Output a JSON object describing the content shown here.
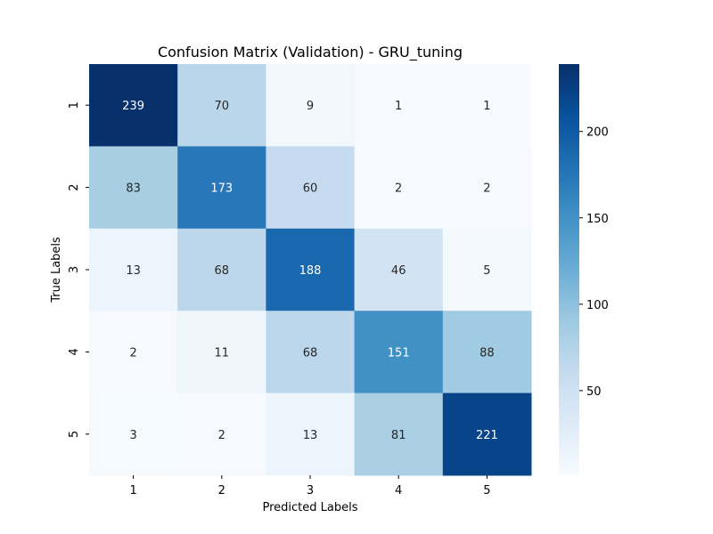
{
  "chart_data": {
    "type": "heatmap",
    "title": "Confusion Matrix (Validation) - GRU_tuning",
    "xlabel": "Predicted Labels",
    "ylabel": "True Labels",
    "x_categories": [
      "1",
      "2",
      "3",
      "4",
      "5"
    ],
    "y_categories": [
      "1",
      "2",
      "3",
      "4",
      "5"
    ],
    "values": [
      [
        239,
        70,
        9,
        1,
        1
      ],
      [
        83,
        173,
        60,
        2,
        2
      ],
      [
        13,
        68,
        188,
        46,
        5
      ],
      [
        2,
        11,
        68,
        151,
        88
      ],
      [
        3,
        2,
        13,
        81,
        221
      ]
    ],
    "colorbar": {
      "colormap": "Blues",
      "range": [
        1,
        239
      ],
      "ticks": [
        50,
        100,
        150,
        200
      ]
    }
  }
}
